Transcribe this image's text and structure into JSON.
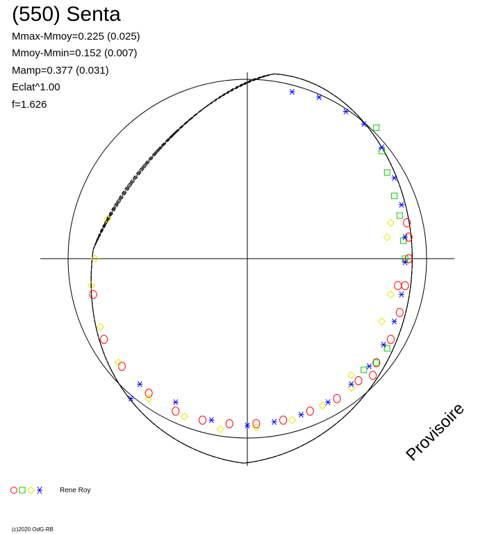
{
  "title": "(550) Senta",
  "stats": [
    "Mmax-Mmoy=0.225 (0.025)",
    "Mmoy-Mmin=0.152 (0.007)",
    "Mamp=0.377 (0.031)",
    "Eclat^1.00",
    "f=1.626"
  ],
  "legend": {
    "label": "Rene Roy",
    "colors": [
      "#ff0000",
      "#00cc00",
      "#ffff00",
      "#0000ff"
    ]
  },
  "watermark": "Provisoire",
  "copyright": "(c)2020 OdG-RB",
  "chart_data": {
    "type": "scatter",
    "polar": true,
    "reference_circle_radius": 1.0,
    "mean_curve_fraction": 0.6,
    "series": [
      {
        "color": "#ff0000",
        "marker": "circle",
        "points": [
          [
            -0.86,
            -0.2
          ],
          [
            -0.8,
            -0.45
          ],
          [
            -0.7,
            -0.6
          ],
          [
            -0.55,
            -0.75
          ],
          [
            -0.4,
            -0.85
          ],
          [
            -0.25,
            -0.9
          ],
          [
            -0.1,
            -0.92
          ],
          [
            0.05,
            -0.92
          ],
          [
            0.2,
            -0.9
          ],
          [
            0.35,
            -0.85
          ],
          [
            0.5,
            -0.78
          ],
          [
            0.62,
            -0.68
          ],
          [
            0.72,
            -0.58
          ],
          [
            0.8,
            -0.45
          ],
          [
            0.85,
            -0.3
          ],
          [
            0.88,
            -0.15
          ],
          [
            0.9,
            0.0
          ],
          [
            0.9,
            0.12
          ],
          [
            0.89,
            0.2
          ],
          [
            0.84,
            -0.15
          ],
          [
            0.7,
            -0.65
          ]
        ]
      },
      {
        "color": "#00cc00",
        "marker": "square",
        "points": [
          [
            0.72,
            0.73
          ],
          [
            0.75,
            0.6
          ],
          [
            0.78,
            0.48
          ],
          [
            0.82,
            0.35
          ],
          [
            0.85,
            0.24
          ],
          [
            0.87,
            0.1
          ],
          [
            0.88,
            0.0
          ],
          [
            0.78,
            -0.5
          ],
          [
            0.72,
            -0.58
          ],
          [
            0.65,
            -0.62
          ]
        ]
      },
      {
        "color": "#e6e600",
        "marker": "diamond",
        "points": [
          [
            -0.78,
            0.22
          ],
          [
            -0.85,
            0.0
          ],
          [
            -0.87,
            -0.15
          ],
          [
            -0.82,
            -0.38
          ],
          [
            -0.72,
            -0.58
          ],
          [
            -0.55,
            -0.78
          ],
          [
            -0.35,
            -0.88
          ],
          [
            -0.15,
            -0.95
          ],
          [
            0.05,
            -0.94
          ],
          [
            0.25,
            -0.9
          ],
          [
            0.42,
            -0.82
          ],
          [
            0.58,
            -0.72
          ],
          [
            0.75,
            -0.35
          ],
          [
            0.8,
            -0.2
          ],
          [
            0.78,
            0.12
          ],
          [
            0.8,
            0.2
          ],
          [
            0.58,
            -0.65
          ]
        ]
      },
      {
        "color": "#0000ff",
        "marker": "star",
        "points": [
          [
            0.25,
            0.93
          ],
          [
            0.4,
            0.9
          ],
          [
            0.55,
            0.82
          ],
          [
            0.65,
            0.75
          ],
          [
            0.75,
            0.62
          ],
          [
            0.82,
            0.45
          ],
          [
            0.86,
            0.3
          ],
          [
            0.88,
            0.12
          ],
          [
            0.88,
            -0.02
          ],
          [
            0.86,
            -0.2
          ],
          [
            0.82,
            -0.35
          ],
          [
            0.76,
            -0.48
          ],
          [
            0.68,
            -0.6
          ],
          [
            0.58,
            -0.7
          ],
          [
            0.45,
            -0.8
          ],
          [
            0.3,
            -0.87
          ],
          [
            0.15,
            -0.91
          ],
          [
            0.0,
            -0.93
          ],
          [
            -0.2,
            -0.9
          ],
          [
            -0.4,
            -0.8
          ],
          [
            -0.6,
            -0.7
          ],
          [
            -0.65,
            -0.78
          ]
        ]
      }
    ]
  }
}
